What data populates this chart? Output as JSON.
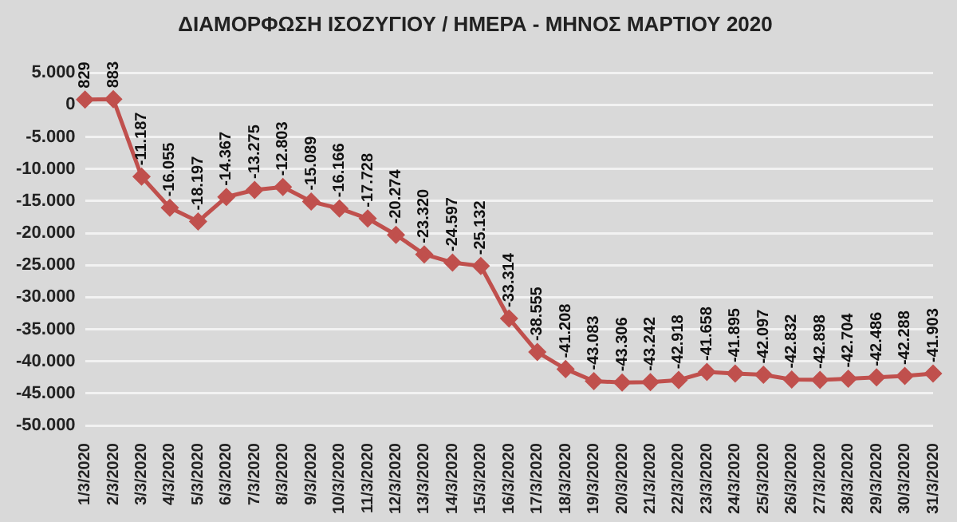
{
  "chart_data": {
    "type": "line",
    "title": "ΔΙΑΜΟΡΦΩΣΗ ΙΣΟΖΥΓΙΟΥ / ΗΜΕΡΑ - ΜΗΝΟΣ ΜΑΡΤΙΟΥ 2020",
    "categories": [
      "1/3/2020",
      "2/3/2020",
      "3/3/2020",
      "4/3/2020",
      "5/3/2020",
      "6/3/2020",
      "7/3/2020",
      "8/3/2020",
      "9/3/2020",
      "10/3/2020",
      "11/3/2020",
      "12/3/2020",
      "13/3/2020",
      "14/3/2020",
      "15/3/2020",
      "16/3/2020",
      "17/3/2020",
      "18/3/2020",
      "19/3/2020",
      "20/3/2020",
      "21/3/2020",
      "22/3/2020",
      "23/3/2020",
      "24/3/2020",
      "25/3/2020",
      "26/3/2020",
      "27/3/2020",
      "28/3/2020",
      "29/3/2020",
      "30/3/2020",
      "31/3/2020"
    ],
    "series": [
      {
        "color": "#c0504d",
        "values": [
          829,
          883,
          -11187,
          -16055,
          -18197,
          -14367,
          -13275,
          -12803,
          -15089,
          -16166,
          -17728,
          -20274,
          -23320,
          -24597,
          -25132,
          -33314,
          -38555,
          -41208,
          -43083,
          -43306,
          -43242,
          -42918,
          -41658,
          -41895,
          -42097,
          -42832,
          -42898,
          -42704,
          -42486,
          -42288,
          -41903
        ],
        "value_labels": [
          "829",
          "883",
          "-11.187",
          "-16.055",
          "-18.197",
          "-14.367",
          "-13.275",
          "-12.803",
          "-15.089",
          "-16.166",
          "-17.728",
          "-20.274",
          "-23.320",
          "-24.597",
          "-25.132",
          "-33.314",
          "-38.555",
          "-41.208",
          "-43.083",
          "-43.306",
          "-43.242",
          "-42.918",
          "-41.658",
          "-41.895",
          "-42.097",
          "-42.832",
          "-42.898",
          "-42.704",
          "-42.486",
          "-42.288",
          "-41.903"
        ]
      }
    ],
    "ylim": [
      -50000,
      5000
    ],
    "yticks": [
      {
        "value": 5000,
        "label": "5.000"
      },
      {
        "value": 0,
        "label": "0"
      },
      {
        "value": -5000,
        "label": "-5.000"
      },
      {
        "value": -10000,
        "label": "-10.000"
      },
      {
        "value": -15000,
        "label": "-15.000"
      },
      {
        "value": -20000,
        "label": "-20.000"
      },
      {
        "value": -25000,
        "label": "-25.000"
      },
      {
        "value": -30000,
        "label": "-30.000"
      },
      {
        "value": -35000,
        "label": "-35.000"
      },
      {
        "value": -40000,
        "label": "-40.000"
      },
      {
        "value": -45000,
        "label": "-45.000"
      },
      {
        "value": -50000,
        "label": "-50.000"
      }
    ],
    "grid": "y",
    "legend": false,
    "marker": "diamond",
    "line_style": "solid"
  }
}
